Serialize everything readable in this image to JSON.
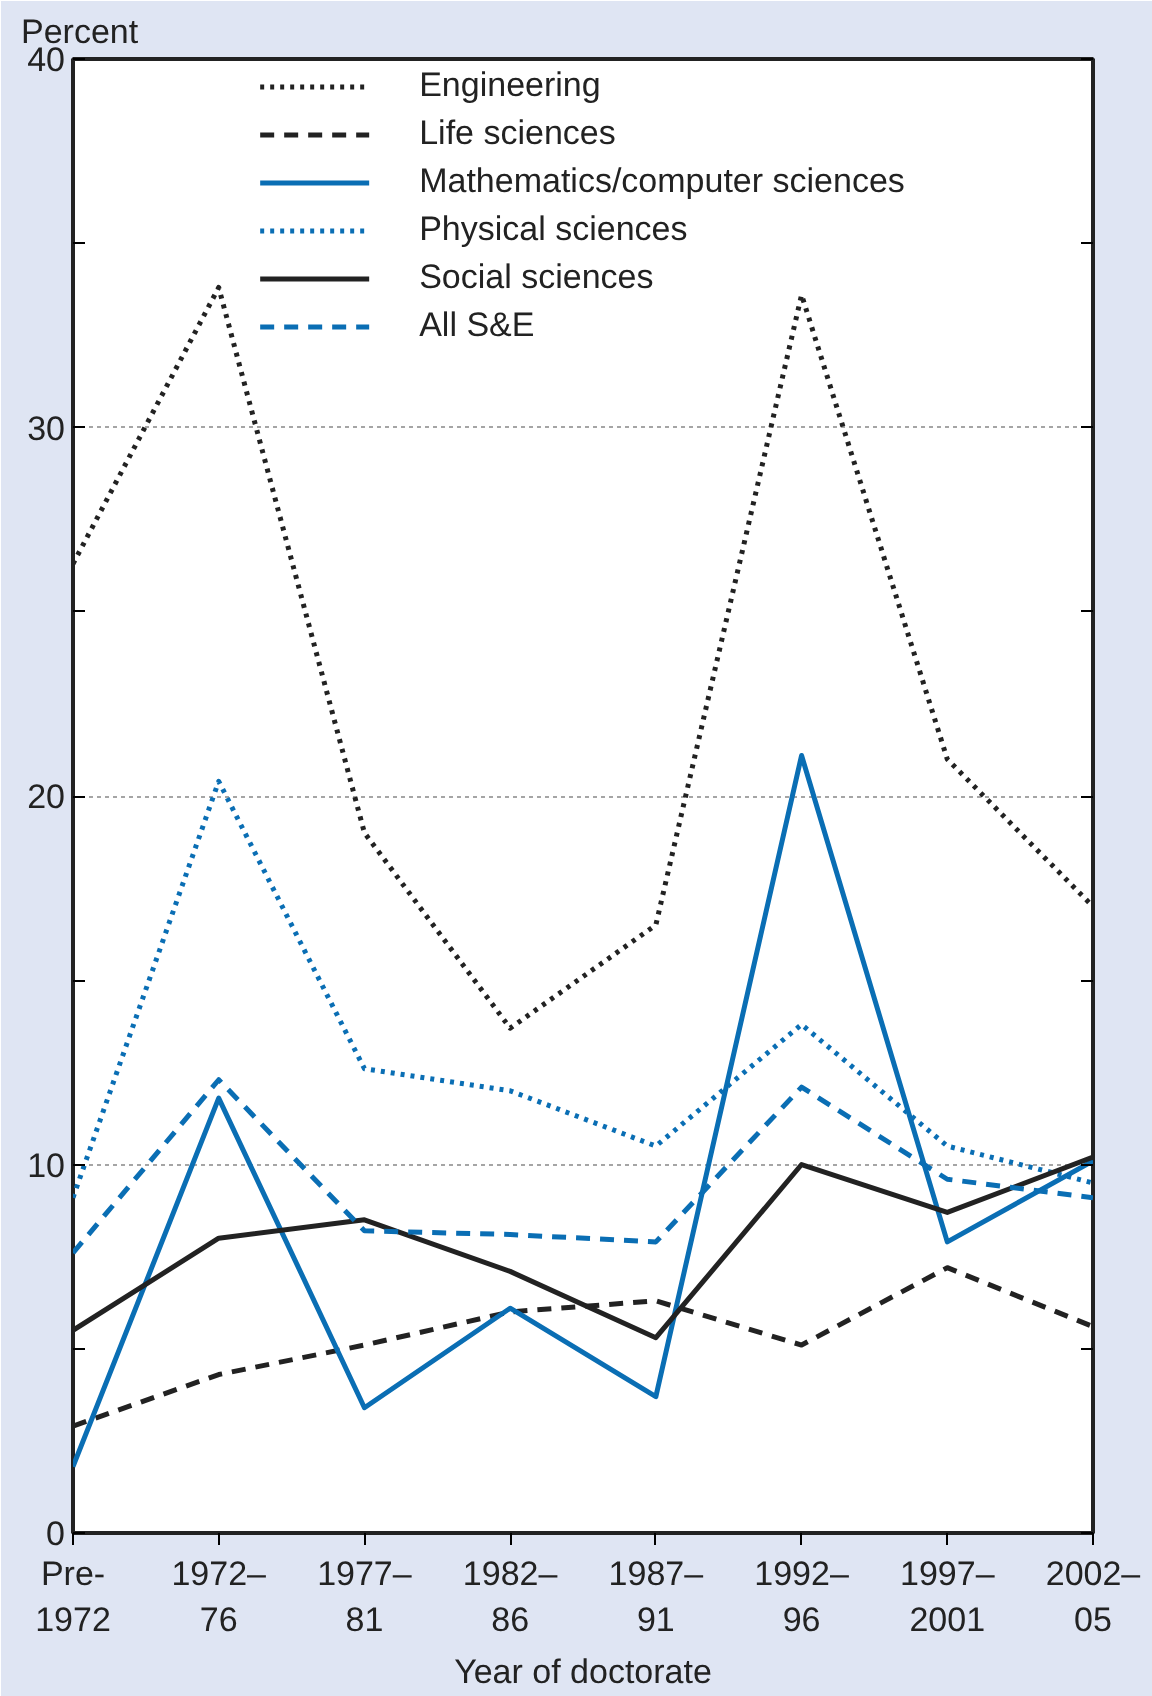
{
  "chart_data": {
    "type": "line",
    "ylabel": "Percent",
    "xlabel": "Year of doctorate",
    "categories": [
      "Pre-\n1972",
      "1972–\n76",
      "1977–\n81",
      "1982–\n86",
      "1987–\n91",
      "1992–\n96",
      "1997–\n2001",
      "2002–\n05"
    ],
    "series": [
      {
        "name": "Engineering",
        "color": "#222222",
        "line_style": "dotted",
        "values": [
          26.3,
          33.8,
          19.0,
          13.7,
          16.5,
          33.6,
          21.0,
          17.0
        ]
      },
      {
        "name": "Life sciences",
        "color": "#222222",
        "line_style": "dashed",
        "values": [
          2.9,
          4.3,
          5.1,
          6.0,
          6.3,
          5.1,
          7.2,
          5.6
        ]
      },
      {
        "name": "Mathematics/computer sciences",
        "color": "#0a6eb4",
        "line_style": "solid",
        "values": [
          1.8,
          11.8,
          3.4,
          6.1,
          3.7,
          21.1,
          7.9,
          10.1
        ]
      },
      {
        "name": "Physical sciences",
        "color": "#0a6eb4",
        "line_style": "dotted",
        "values": [
          9.1,
          20.4,
          12.6,
          12.0,
          10.5,
          13.8,
          10.5,
          9.5
        ]
      },
      {
        "name": "Social sciences",
        "color": "#222222",
        "line_style": "solid",
        "values": [
          5.5,
          8.0,
          8.5,
          7.1,
          5.3,
          10.0,
          8.7,
          10.2
        ]
      },
      {
        "name": "All S&E",
        "color": "#0a6eb4",
        "line_style": "dashed",
        "values": [
          7.6,
          12.3,
          8.2,
          8.1,
          7.9,
          12.1,
          9.6,
          9.1
        ]
      }
    ],
    "ylim": [
      0,
      40
    ],
    "yticks": [
      0,
      {
        "value": 5,
        "label": null
      },
      10,
      {
        "value": 15,
        "label": null
      },
      20,
      {
        "value": 25,
        "label": null
      },
      30,
      {
        "value": 35,
        "label": null
      },
      40
    ],
    "grid": "y",
    "legend": "top",
    "marker": "none"
  }
}
